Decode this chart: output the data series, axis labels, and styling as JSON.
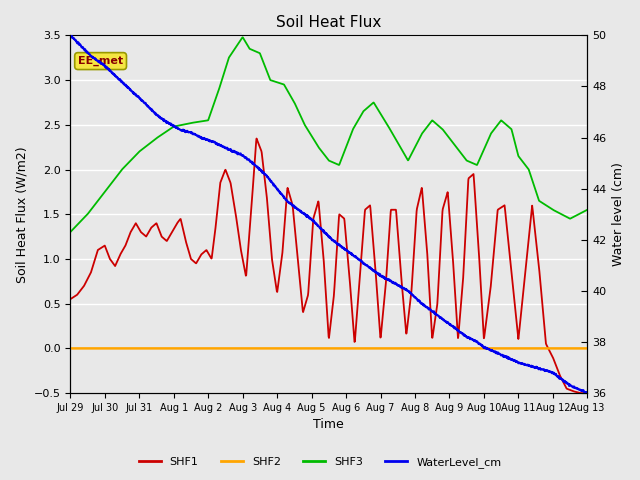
{
  "title": "Soil Heat Flux",
  "ylabel_left": "Soil Heat Flux (W/m2)",
  "ylabel_right": "Water level (cm)",
  "xlabel": "Time",
  "ylim_left": [
    -0.5,
    3.5
  ],
  "ylim_right": [
    36,
    50
  ],
  "bg_color": "#e8e8e8",
  "grid_color": "white",
  "annotation_text": "EE_met",
  "annotation_box_facecolor": "#f5e642",
  "annotation_box_edgecolor": "#999900",
  "annotation_text_color": "#880000",
  "colors": {
    "SHF1": "#cc0000",
    "SHF2": "#ffa500",
    "SHF3": "#00bb00",
    "WaterLevel": "#0000ee"
  },
  "x_tick_labels": [
    "Jul 29",
    "Jul 30",
    "Jul 31",
    "Aug 1",
    "Aug 2",
    "Aug 3",
    "Aug 4",
    "Aug 5",
    "Aug 6",
    "Aug 7",
    "Aug 8",
    "Aug 9",
    "Aug 10",
    "Aug 11",
    "Aug 12",
    "Aug 13"
  ],
  "x_ticks": [
    0,
    1,
    2,
    3,
    4,
    5,
    6,
    7,
    8,
    9,
    10,
    11,
    12,
    13,
    14,
    15
  ],
  "left_yticks": [
    -0.5,
    0.0,
    0.5,
    1.0,
    1.5,
    2.0,
    2.5,
    3.0,
    3.5
  ],
  "right_yticks": [
    36,
    38,
    40,
    42,
    44,
    46,
    48,
    50
  ],
  "linewidth": 1.3
}
